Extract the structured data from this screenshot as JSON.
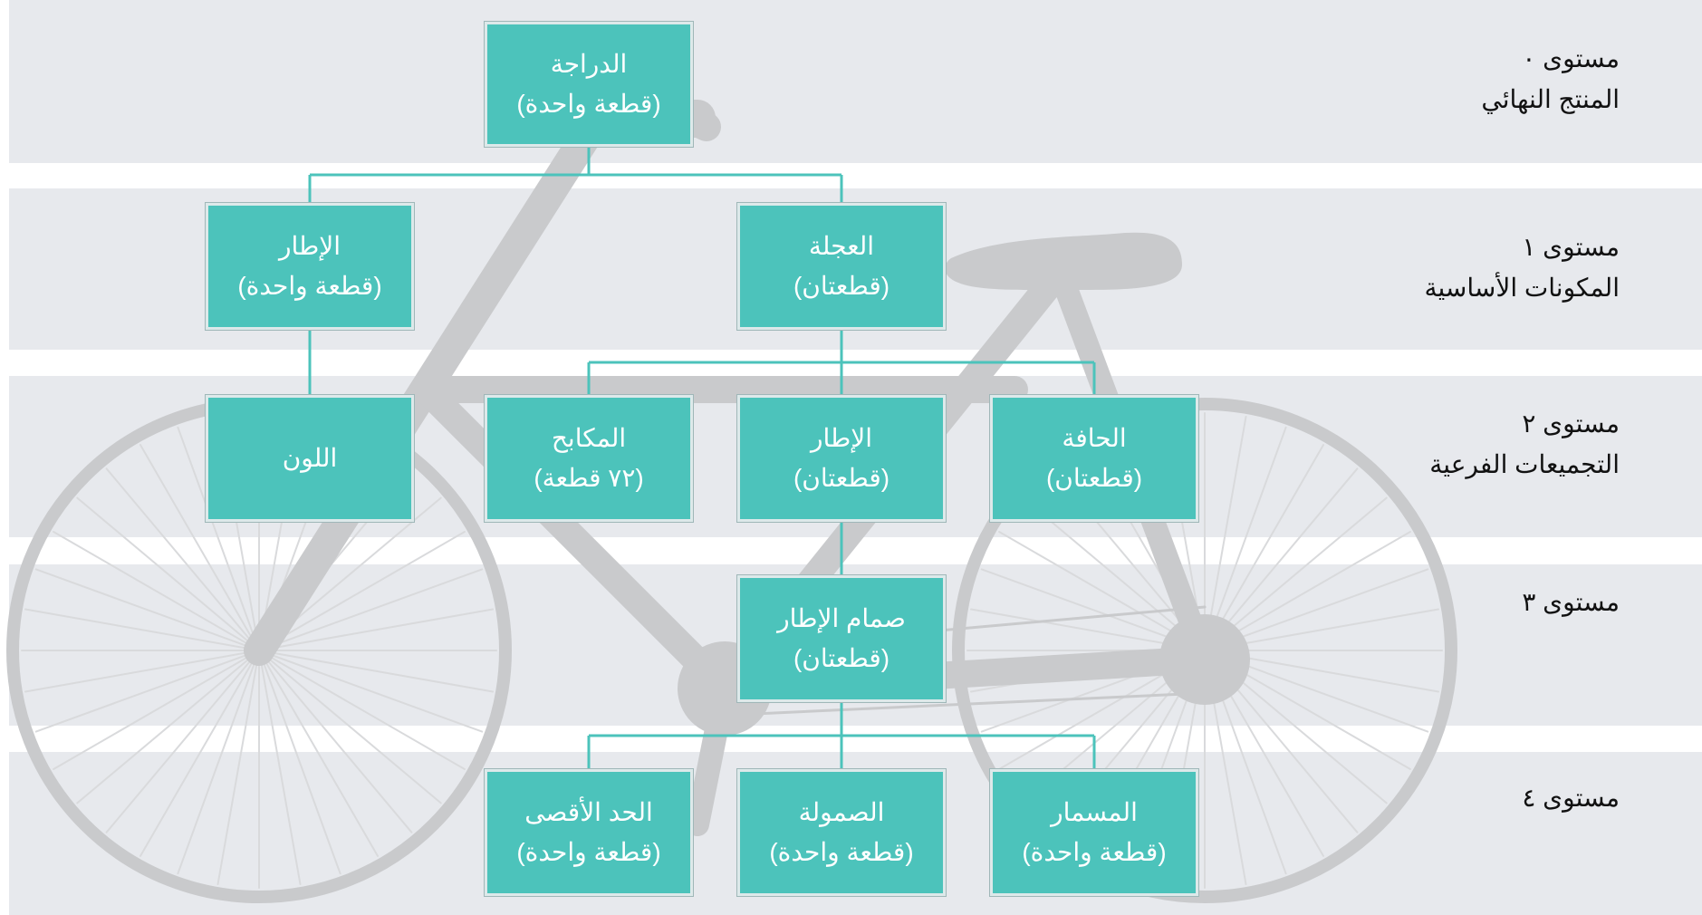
{
  "colors": {
    "band": "#e7e9ed",
    "node": "#4cc3bb",
    "line": "#4cc3bb",
    "bike": "#c9cacc"
  },
  "levels": [
    {
      "title": "مستوى ٠",
      "subtitle": "المنتج النهائي"
    },
    {
      "title": "مستوى ١",
      "subtitle": "المكونات الأساسية"
    },
    {
      "title": "مستوى ٢",
      "subtitle": "التجميعات الفرعية"
    },
    {
      "title": "مستوى ٣",
      "subtitle": ""
    },
    {
      "title": "مستوى ٤",
      "subtitle": ""
    }
  ],
  "nodes": {
    "bicycle": {
      "name": "الدراجة",
      "qty": "(قطعة واحدة)"
    },
    "frame": {
      "name": "الإطار",
      "qty": "(قطعة واحدة)"
    },
    "wheel": {
      "name": "العجلة",
      "qty": "(قطعتان)"
    },
    "color": {
      "name": "اللون",
      "qty": ""
    },
    "spokes": {
      "name": "المكابح",
      "qty": "(٧٢ قطعة)"
    },
    "tire": {
      "name": "الإطار",
      "qty": "(قطعتان)"
    },
    "rim": {
      "name": "الحافة",
      "qty": "(قطعتان)"
    },
    "valve": {
      "name": "صمام الإطار",
      "qty": "(قطعتان)"
    },
    "cap": {
      "name": "الحد الأقصى",
      "qty": "(قطعة واحدة)"
    },
    "nut": {
      "name": "الصمولة",
      "qty": "(قطعة واحدة)"
    },
    "nail": {
      "name": "المسمار",
      "qty": "(قطعة واحدة)"
    }
  }
}
